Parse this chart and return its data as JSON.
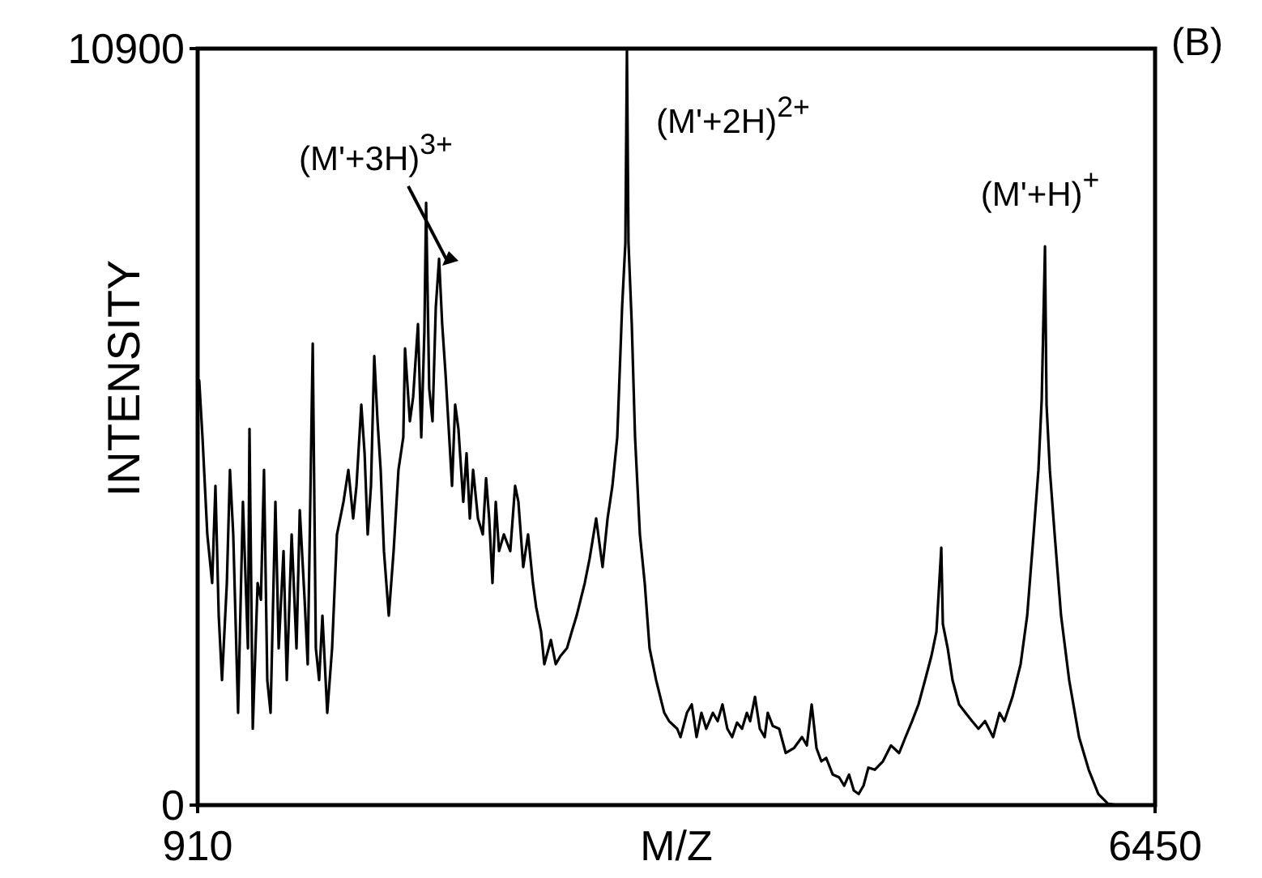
{
  "chart_data": {
    "type": "line",
    "xlabel": "M/Z",
    "ylabel": "INTENSITY",
    "xlim": [
      910,
      6450
    ],
    "ylim": [
      0,
      10900
    ],
    "xticks": [
      910,
      6450
    ],
    "yticks": [
      0,
      10900
    ],
    "marker": "none",
    "line_style": "solid",
    "annotations": [
      {
        "text": "(M'+3H)$^{3+}$",
        "x": 2316,
        "y": 7750
      },
      {
        "text": "(M'+2H)$^{2+}$",
        "x": 3394,
        "y": 10900
      },
      {
        "text": "(M'+H)$^{+}$",
        "x": 5813,
        "y": 8050
      },
      "(B)"
    ],
    "series": [
      {
        "color": "#000000",
        "x": [
          919,
          938,
          966,
          994,
          1013,
          1032,
          1051,
          1079,
          1097,
          1116,
          1144,
          1172,
          1201,
          1210,
          1229,
          1257,
          1276,
          1294,
          1313,
          1332,
          1360,
          1379,
          1407,
          1426,
          1454,
          1482,
          1501,
          1529,
          1547,
          1576,
          1594,
          1613,
          1632,
          1660,
          1688,
          1716,
          1754,
          1782,
          1810,
          1829,
          1857,
          1876,
          1894,
          1913,
          1932,
          1951,
          1969,
          1988,
          2016,
          2044,
          2072,
          2100,
          2110,
          2138,
          2157,
          2185,
          2204,
          2222,
          2232,
          2250,
          2269,
          2288,
          2307,
          2325,
          2344,
          2363,
          2382,
          2400,
          2419,
          2447,
          2466,
          2485,
          2504,
          2532,
          2560,
          2579,
          2597,
          2616,
          2635,
          2654,
          2682,
          2719,
          2747,
          2766,
          2794,
          2822,
          2850,
          2869,
          2897,
          2916,
          2954,
          2982,
          3010,
          3047,
          3075,
          3103,
          3150,
          3178,
          3216,
          3253,
          3282,
          3310,
          3338,
          3366,
          3385,
          3394,
          3403,
          3422,
          3441,
          3469,
          3497,
          3525,
          3563,
          3610,
          3638,
          3685,
          3704,
          3741,
          3769,
          3797,
          3825,
          3853,
          3891,
          3919,
          3947,
          3975,
          4003,
          4031,
          4060,
          4088,
          4107,
          4135,
          4163,
          4191,
          4209,
          4238,
          4275,
          4313,
          4360,
          4407,
          4435,
          4463,
          4491,
          4519,
          4547,
          4585,
          4622,
          4651,
          4679,
          4707,
          4735,
          4763,
          4791,
          4828,
          4875,
          4922,
          4969,
          5006,
          5044,
          5081,
          5119,
          5156,
          5185,
          5213,
          5222,
          5250,
          5278,
          5316,
          5353,
          5391,
          5428,
          5466,
          5513,
          5550,
          5578,
          5625,
          5672,
          5710,
          5747,
          5775,
          5794,
          5813,
          5822,
          5841,
          5869,
          5906,
          5953,
          6010,
          6066,
          6122,
          6178,
          6234
        ],
        "values": [
          6120,
          5300,
          3900,
          3200,
          4600,
          2730,
          1800,
          3200,
          4830,
          3900,
          1330,
          4370,
          2260,
          5420,
          1100,
          3200,
          2960,
          4830,
          1800,
          1330,
          4370,
          2260,
          3660,
          1800,
          3900,
          2260,
          4250,
          2960,
          2030,
          6650,
          2260,
          1800,
          2730,
          1330,
          2260,
          3900,
          4370,
          4830,
          4130,
          4600,
          5770,
          5070,
          3900,
          4600,
          6470,
          5530,
          4830,
          3660,
          2730,
          3660,
          4830,
          5300,
          6580,
          5530,
          5880,
          6930,
          5300,
          6820,
          8680,
          6000,
          5530,
          7170,
          7870,
          6930,
          6230,
          5420,
          4600,
          5770,
          5420,
          4370,
          5070,
          4130,
          4830,
          4130,
          3900,
          4710,
          4130,
          3200,
          4370,
          3660,
          3900,
          3660,
          4600,
          4370,
          3430,
          3900,
          3200,
          2850,
          2500,
          2030,
          2380,
          2030,
          2150,
          2260,
          2500,
          2730,
          3200,
          3550,
          4130,
          3430,
          4130,
          4600,
          5300,
          7170,
          8100,
          10900,
          8100,
          6930,
          5300,
          3900,
          3200,
          2260,
          1800,
          1330,
          1210,
          1100,
          980,
          1330,
          1450,
          980,
          1330,
          1100,
          1330,
          1210,
          1450,
          1100,
          980,
          1190,
          1100,
          1330,
          1210,
          1560,
          1100,
          980,
          1330,
          1140,
          1100,
          750,
          820,
          980,
          860,
          1450,
          820,
          630,
          680,
          440,
          400,
          280,
          440,
          210,
          160,
          280,
          540,
          510,
          630,
          860,
          750,
          980,
          1210,
          1450,
          1800,
          2150,
          2500,
          3710,
          2610,
          2260,
          1800,
          1450,
          1330,
          1210,
          1100,
          1210,
          980,
          1330,
          1210,
          1560,
          2030,
          2730,
          3900,
          4830,
          5840,
          8050,
          5770,
          4830,
          3900,
          2730,
          1800,
          980,
          510,
          160,
          20,
          0
        ]
      }
    ]
  }
}
